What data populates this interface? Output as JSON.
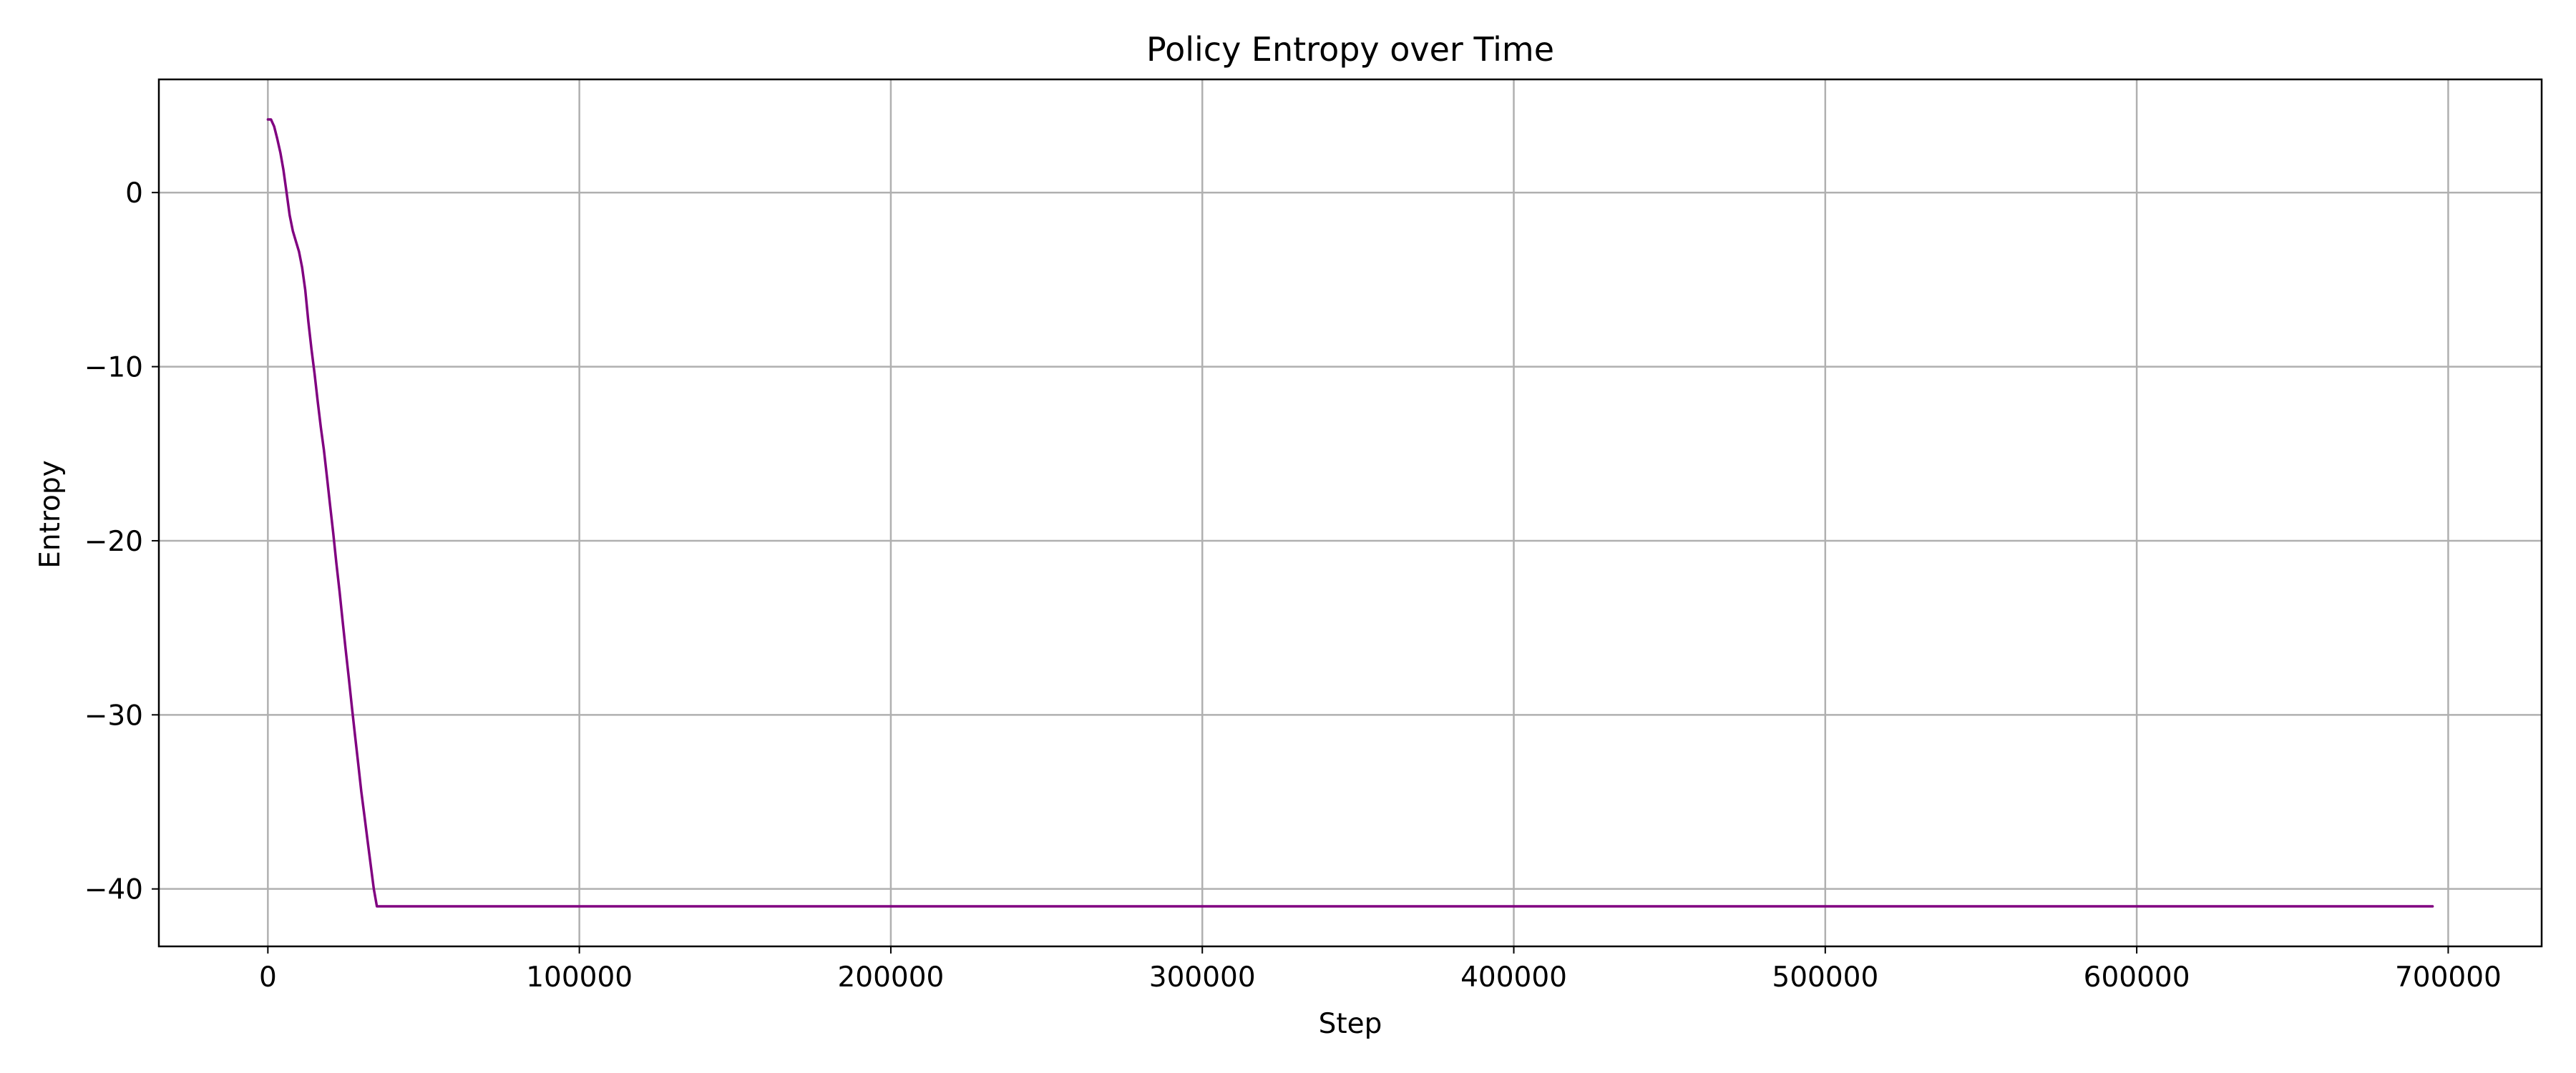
{
  "chart_data": {
    "type": "line",
    "title": "Policy Entropy over Time",
    "xlabel": "Step",
    "ylabel": "Entropy",
    "xlim": [
      -35000,
      730000
    ],
    "ylim": [
      -43.3,
      6.5
    ],
    "xticks": [
      0,
      100000,
      200000,
      300000,
      400000,
      500000,
      600000,
      700000
    ],
    "xtick_labels": [
      "0",
      "100000",
      "200000",
      "300000",
      "400000",
      "500000",
      "600000",
      "700000"
    ],
    "yticks": [
      0,
      -10,
      -20,
      -30,
      -40
    ],
    "ytick_labels": [
      "0",
      "−10",
      "−20",
      "−30",
      "−40"
    ],
    "grid": true,
    "legend": "none",
    "colors": {
      "line": "#800080",
      "grid": "#b0b0b0",
      "frame": "#000000"
    },
    "series": [
      {
        "x": [
          0,
          1000,
          2000,
          3000,
          4000,
          5000,
          6000,
          7000,
          8000,
          9000,
          10000,
          11000,
          12000,
          13000,
          14000,
          15000,
          16000,
          17000,
          18000,
          19000,
          20000,
          21000,
          22000,
          23000,
          24000,
          25000,
          26000,
          27000,
          28000,
          29000,
          30000,
          31000,
          32000,
          33000,
          34000,
          35000,
          36000,
          37000,
          38000,
          39000,
          40000,
          41000,
          42000,
          695000
        ],
        "y": [
          4.2,
          4.2,
          3.8,
          3.1,
          2.3,
          1.3,
          0.0,
          -1.3,
          -2.2,
          -2.8,
          -3.4,
          -4.3,
          -5.6,
          -7.4,
          -9.0,
          -10.4,
          -12.0,
          -13.5,
          -14.8,
          -16.4,
          -18.0,
          -19.6,
          -21.3,
          -22.9,
          -24.6,
          -26.3,
          -27.9,
          -29.6,
          -31.2,
          -32.8,
          -34.4,
          -35.8,
          -37.2,
          -38.6,
          -40.0,
          -41.0,
          -41.0,
          -41.0,
          -41.0,
          -41.0,
          -41.0,
          -41.0,
          -41.0,
          -41.0
        ]
      }
    ]
  }
}
